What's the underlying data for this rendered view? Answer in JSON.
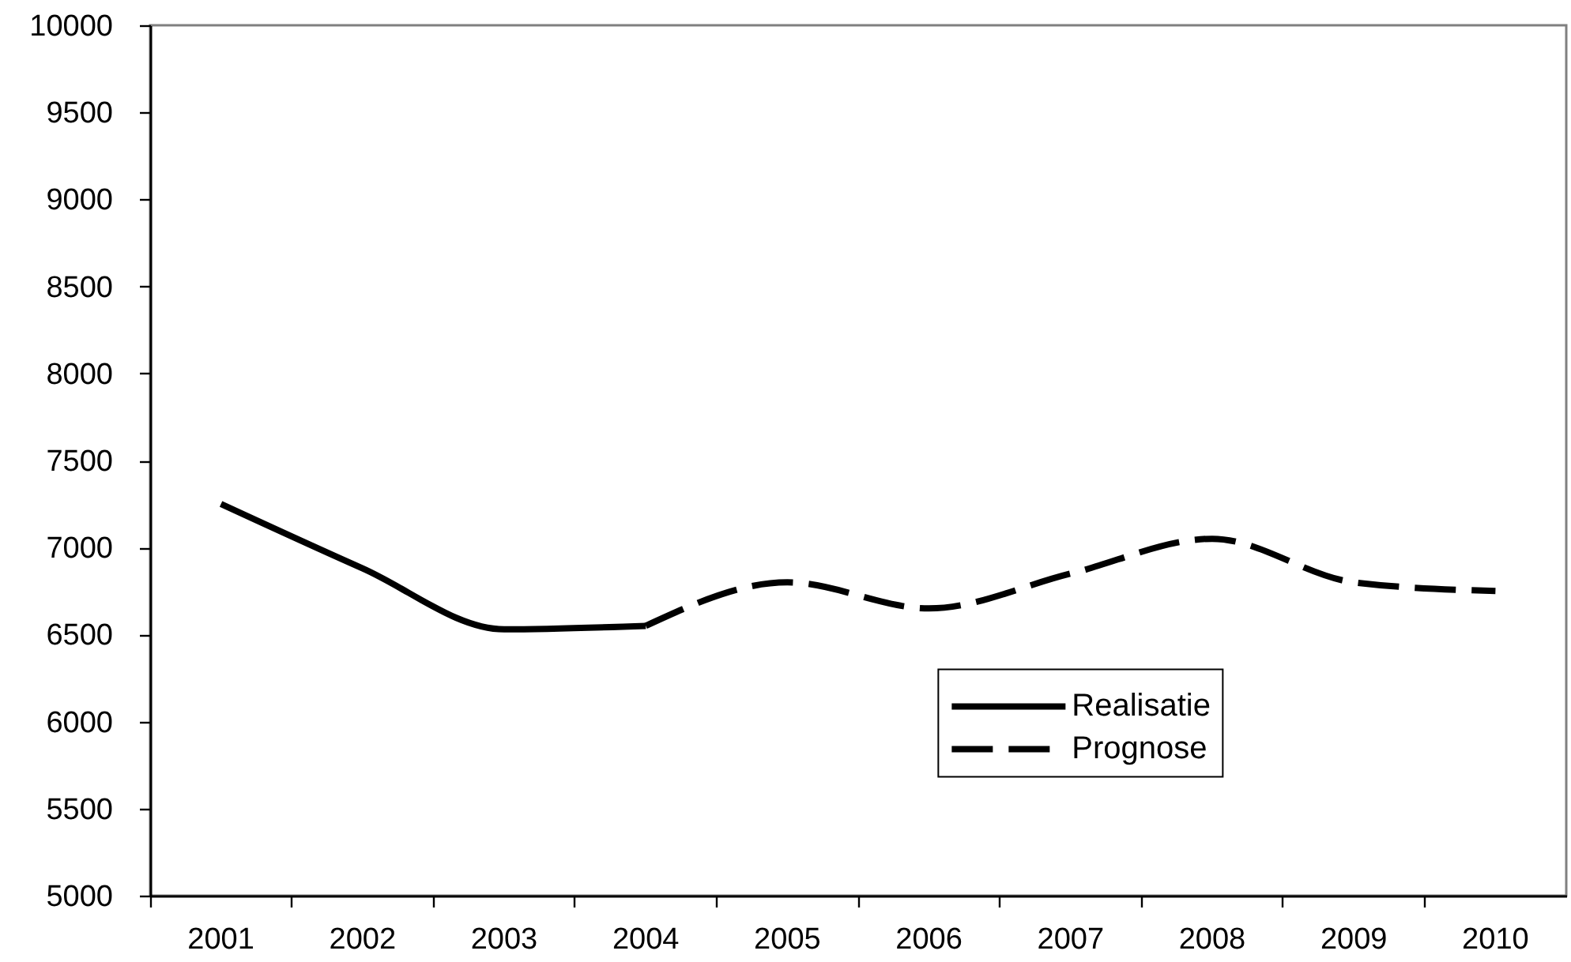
{
  "chart_data": {
    "type": "line",
    "categories": [
      "2001",
      "2002",
      "2003",
      "2004",
      "2005",
      "2006",
      "2007",
      "2008",
      "2009",
      "2010"
    ],
    "series": [
      {
        "name": "Realisatie",
        "color": "#000000",
        "line_style": "solid",
        "values": [
          7250,
          6880,
          6530,
          6550,
          null,
          null,
          null,
          null,
          null,
          null
        ]
      },
      {
        "name": "Prognose",
        "color": "#000000",
        "line_style": "dashed",
        "values": [
          null,
          null,
          null,
          6550,
          6800,
          6650,
          6850,
          7050,
          6800,
          6750
        ]
      }
    ],
    "ylim": [
      5000,
      10000
    ],
    "yticks": [
      5000,
      5500,
      6000,
      6500,
      7000,
      7500,
      8000,
      8500,
      9000,
      9500,
      10000
    ],
    "legend": "bottom right"
  }
}
